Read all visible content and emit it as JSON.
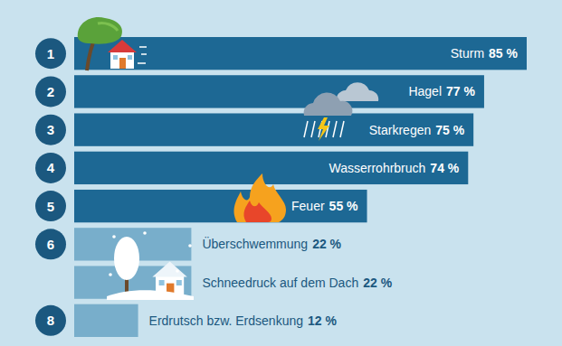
{
  "chart_data": {
    "type": "bar",
    "orientation": "horizontal",
    "categories": [
      "Sturm",
      "Hagel",
      "Starkregen",
      "Wasserrohrbruch",
      "Feuer",
      "Überschwemmung",
      "Schneedruck auf dem Dach",
      "Erdrutsch bzw. Erdsenkung"
    ],
    "values": [
      85,
      77,
      75,
      74,
      55,
      22,
      22,
      12
    ],
    "value_labels": [
      "85 %",
      "77 %",
      "75 %",
      "74 %",
      "55 %",
      "22 %",
      "22 %",
      "12 %"
    ],
    "ranks": [
      1,
      2,
      3,
      4,
      5,
      6,
      null,
      8
    ],
    "colors": [
      "#1d6894",
      "#1d6894",
      "#1d6894",
      "#1d6894",
      "#1d6894",
      "#78aecb",
      "#78aecb",
      "#78aecb"
    ],
    "data_labels": true,
    "tick_labels": false
  }
}
